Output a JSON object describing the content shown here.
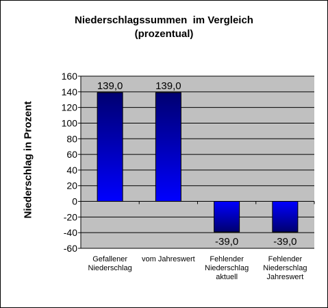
{
  "chart_data": {
    "type": "bar",
    "title_line1": "Niederschlagssummen  im Vergleich",
    "title_line2": "(prozentual)",
    "xlabel": "",
    "ylabel": "Niederschlag in Prozent",
    "ylim": [
      -60,
      160
    ],
    "yticks": [
      -60,
      -40,
      -20,
      0,
      20,
      40,
      60,
      80,
      100,
      120,
      140,
      160
    ],
    "grid": true,
    "legend": "none",
    "categories": [
      [
        "Gefallener",
        "Niederschlag"
      ],
      [
        "vom Jahreswert"
      ],
      [
        "Fehlender",
        "Niederschlag",
        "aktuell"
      ],
      [
        "Fehlender",
        "Niederschlag",
        "Jahreswert"
      ]
    ],
    "values": [
      139.0,
      139.0,
      -39.0,
      -39.0
    ],
    "value_labels": [
      "139,0",
      "139,0",
      "-39,0",
      "-39,0"
    ],
    "colors": {
      "plot_background": "#c0c0c0",
      "bar_dark": "#000070",
      "bar_light": "#0000ff",
      "gridline": "#000000"
    }
  }
}
